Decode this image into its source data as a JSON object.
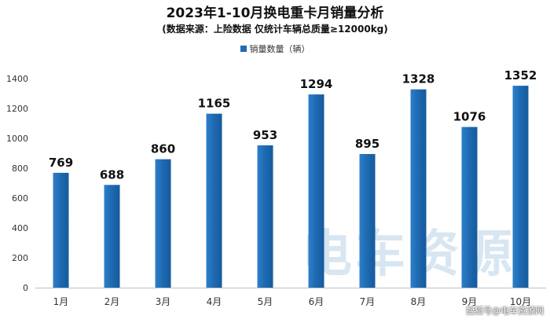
{
  "chart_data": {
    "type": "bar",
    "title": "2023年1-10月换电重卡月销量分析",
    "subtitle": "(数据来源：上险数据 仅统计车辆总质量≥12000kg)",
    "categories": [
      "1月",
      "2月",
      "3月",
      "4月",
      "5月",
      "6月",
      "7月",
      "8月",
      "9月",
      "10月"
    ],
    "series": [
      {
        "name": "销量数量（辆）",
        "values": [
          769,
          688,
          860,
          1165,
          953,
          1294,
          895,
          1328,
          1076,
          1352
        ]
      }
    ],
    "ylim": [
      0,
      1400
    ],
    "yticks": [
      0,
      200,
      400,
      600,
      800,
      1000,
      1200,
      1400
    ],
    "grid": false,
    "legend_position": "top-center",
    "data_labels": true,
    "bar_color": "#1f6bb3"
  },
  "watermark": {
    "logo_text": "电车资源",
    "source": "搜狐号@电车资源网"
  }
}
